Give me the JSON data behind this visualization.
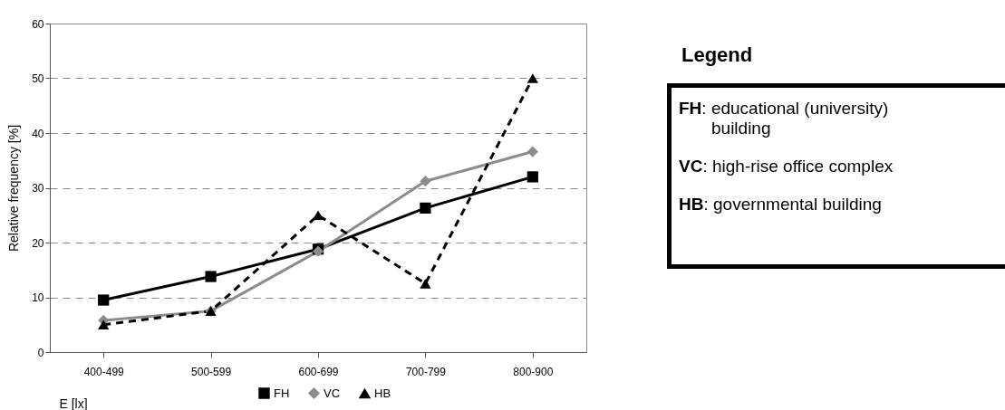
{
  "chart_data": {
    "type": "line",
    "xlabel": "E [lx]",
    "ylabel": "Relative frequency [%]",
    "categories": [
      "400-499",
      "500-599",
      "600-699",
      "700-799",
      "800-900"
    ],
    "series": [
      {
        "name": "FH",
        "color": "#000000",
        "marker": "square",
        "line_style": "solid",
        "values": [
          9.5,
          13.8,
          18.8,
          26.3,
          32.0
        ]
      },
      {
        "name": "VC",
        "color": "#8c8c8c",
        "marker": "diamond",
        "line_style": "solid",
        "values": [
          5.8,
          7.5,
          18.4,
          31.2,
          36.6
        ]
      },
      {
        "name": "HB",
        "color": "#000000",
        "marker": "triangle",
        "line_style": "dashed",
        "values": [
          5.0,
          7.5,
          25.0,
          12.5,
          50.0
        ]
      }
    ],
    "ylim": [
      0,
      60
    ],
    "yticks": [
      0,
      10,
      20,
      30,
      40,
      50,
      60
    ],
    "grid": "y",
    "legend": "bottom",
    "annotations": [
      "Legend",
      "FH: educational (university) building",
      "VC: high-rise office complex",
      "HB: governmental building"
    ]
  }
}
